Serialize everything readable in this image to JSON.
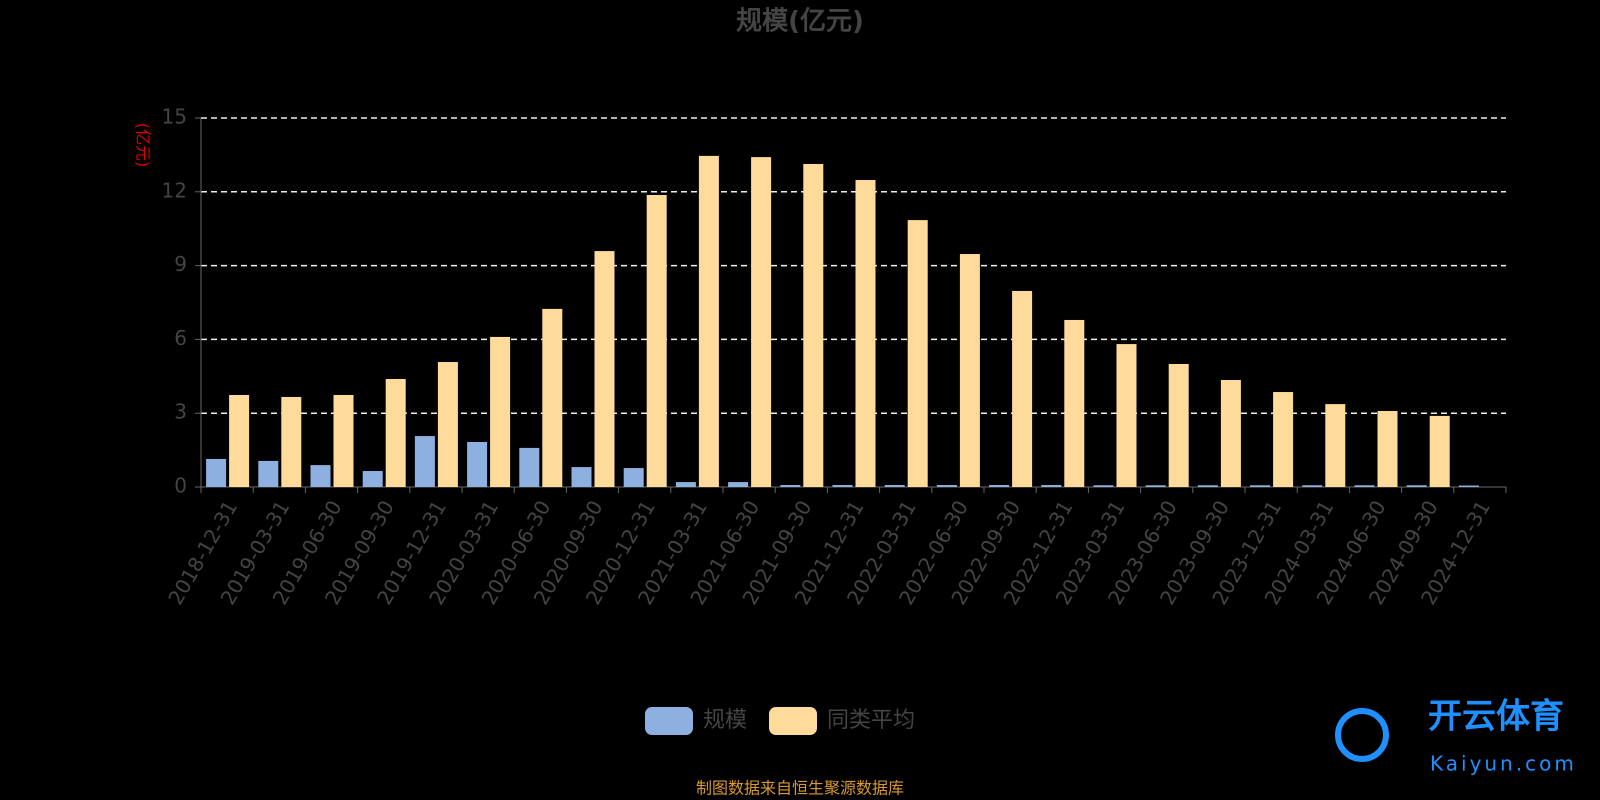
{
  "chart_data": {
    "type": "bar",
    "title": "规模(亿元)",
    "y_label": "(亿元)",
    "categories": [
      "2018-12-31",
      "2019-03-31",
      "2019-06-30",
      "2019-09-30",
      "2019-12-31",
      "2020-03-31",
      "2020-06-30",
      "2020-09-30",
      "2020-12-31",
      "2021-03-31",
      "2021-06-30",
      "2021-09-30",
      "2021-12-31",
      "2022-03-31",
      "2022-06-30",
      "2022-09-30",
      "2022-12-31",
      "2023-03-31",
      "2023-06-30",
      "2023-09-30",
      "2023-12-31",
      "2024-03-31",
      "2024-06-30",
      "2024-09-30",
      "2024-12-31"
    ],
    "series": [
      {
        "name": "规模",
        "color": "#8eb0e0",
        "values": [
          1.14,
          1.06,
          0.89,
          0.65,
          2.07,
          1.83,
          1.59,
          0.81,
          0.77,
          0.2,
          0.2,
          0.08,
          0.08,
          0.08,
          0.08,
          0.08,
          0.08,
          0.07,
          0.07,
          0.07,
          0.07,
          0.07,
          0.07,
          0.07,
          0.06
        ]
      },
      {
        "name": "同类平均",
        "color": "#ffdb9b",
        "values": [
          3.74,
          3.66,
          3.74,
          4.39,
          5.08,
          6.1,
          7.24,
          9.59,
          11.87,
          13.46,
          13.41,
          13.13,
          12.48,
          10.85,
          9.47,
          7.97,
          6.79,
          5.81,
          5.0,
          4.35,
          3.86,
          3.37,
          3.09,
          2.89,
          null
        ]
      }
    ],
    "ylim": [
      0,
      15
    ],
    "yticks": [
      0,
      3,
      6,
      9,
      12,
      15
    ],
    "grid": true,
    "source": "制图数据来自恒生聚源数据库",
    "watermark": {
      "name": "开云体育",
      "url": "Kaiyun.com"
    }
  }
}
